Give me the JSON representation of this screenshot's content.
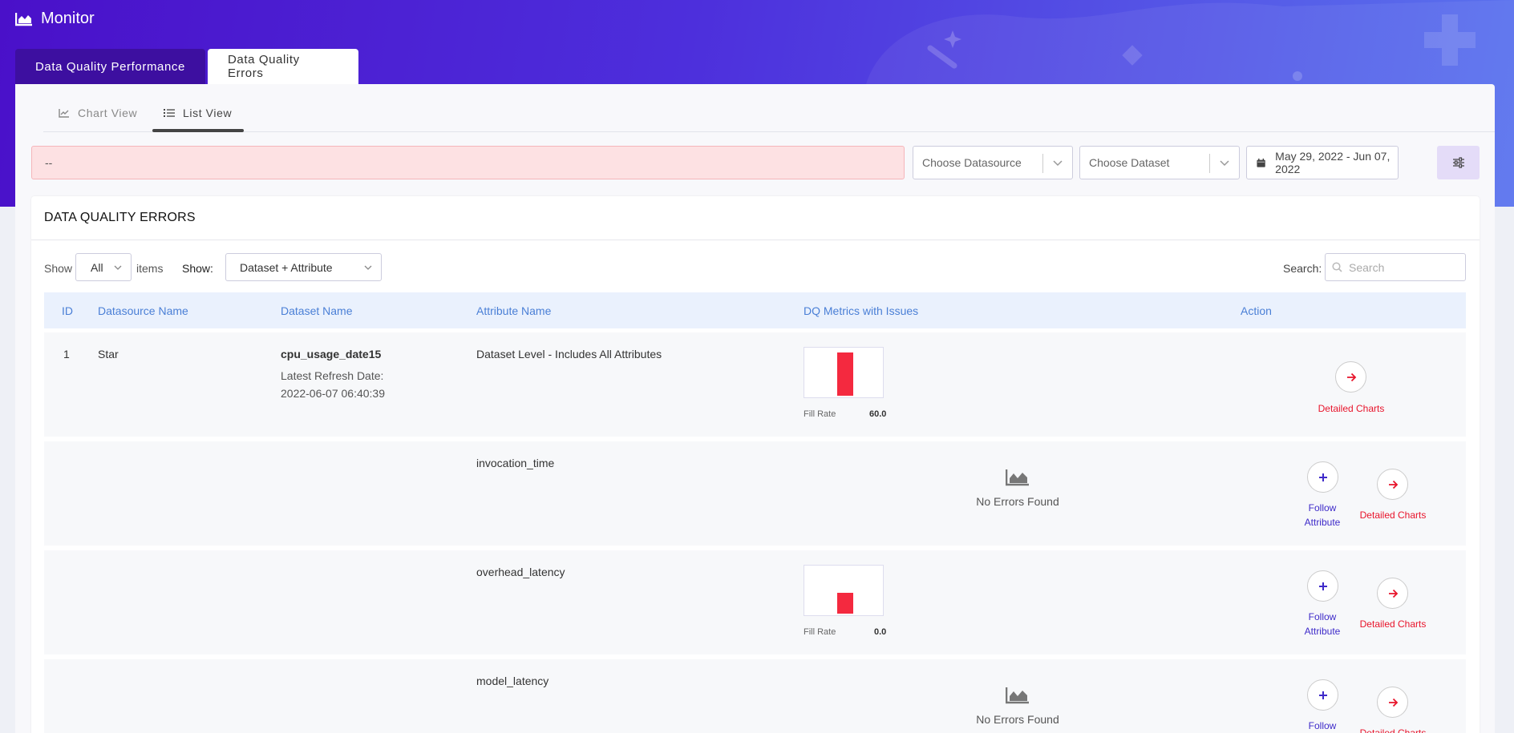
{
  "app": {
    "title": "Monitor"
  },
  "top_tabs": [
    {
      "label": "Data Quality Performance",
      "active": false
    },
    {
      "label": "Data Quality Errors",
      "active": true
    }
  ],
  "view_tabs": [
    {
      "label": "Chart View",
      "active": false
    },
    {
      "label": "List View",
      "active": true
    }
  ],
  "filters": {
    "alert_text": "--",
    "datasource_placeholder": "Choose Datasource",
    "dataset_placeholder": "Choose Dataset",
    "date_range": "May 29, 2022 - Jun 07, 2022"
  },
  "card": {
    "title": "DATA QUALITY ERRORS",
    "show_label": "Show",
    "show_value": "All",
    "items_label": "items",
    "show2_label": "Show:",
    "show2_value": "Dataset + Attribute",
    "search_label": "Search:",
    "search_placeholder": "Search"
  },
  "table": {
    "headers": {
      "id": "ID",
      "datasource": "Datasource Name",
      "dataset": "Dataset Name",
      "attribute": "Attribute Name",
      "metrics": "DQ Metrics with Issues",
      "action": "Action"
    },
    "rows": [
      {
        "id": "1",
        "datasource": "Star",
        "dataset": "cpu_usage_date15",
        "refresh_label": "Latest Refresh Date:",
        "refresh_date": "2022-06-07 06:40:39",
        "attribute": "Dataset Level - Includes All Attributes",
        "metric_name": "Fill Rate",
        "metric_value": "60.0",
        "detail_label": "Detailed Charts"
      },
      {
        "attribute": "invocation_time",
        "no_errors": "No Errors Found",
        "follow_label": "Follow Attribute",
        "detail_label": "Detailed Charts"
      },
      {
        "attribute": "overhead_latency",
        "metric_name": "Fill Rate",
        "metric_value": "0.0",
        "follow_label": "Follow Attribute",
        "detail_label": "Detailed Charts"
      },
      {
        "attribute": "model_latency",
        "no_errors": "No Errors Found",
        "follow_label": "Follow Attribute",
        "detail_label": "Detailed Charts"
      }
    ]
  },
  "colors": {
    "header_gradient_start": "#4a10c9",
    "header_gradient_end": "#5a73ee",
    "error_bar": "#f4293f",
    "detail_red": "#e8142b",
    "follow_purple": "#3e2ac9",
    "table_header_text": "#4a7fd6"
  }
}
